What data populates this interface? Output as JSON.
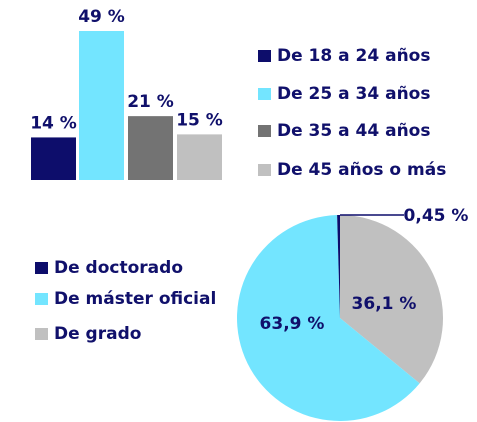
{
  "chart_data": [
    {
      "type": "bar",
      "categories": [
        "De 18 a 24 años",
        "De 25 a 34 años",
        "De 35 a 44 años",
        "De 45 años o más"
      ],
      "values": [
        14,
        49,
        21,
        15
      ],
      "value_labels": [
        "14 %",
        "49 %",
        "21 %",
        "15 %"
      ],
      "colors": [
        "#0d0d6b",
        "#73e5ff",
        "#737373",
        "#c0c0c0"
      ]
    },
    {
      "type": "pie",
      "categories": [
        "De doctorado",
        "De máster oficial",
        "De grado"
      ],
      "values": [
        0.45,
        63.9,
        36.1
      ],
      "value_labels": [
        "0,45 %",
        "63,9 %",
        "36,1 %"
      ],
      "colors": [
        "#0d0d6b",
        "#73e5ff",
        "#c0c0c0"
      ]
    }
  ]
}
